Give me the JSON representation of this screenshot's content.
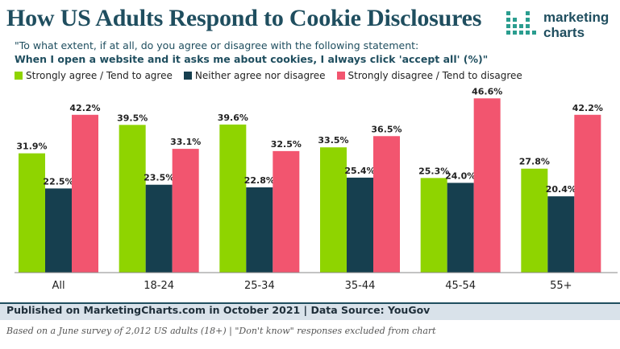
{
  "header": {
    "title": "How US Adults Respond to Cookie Disclosures",
    "subtitle_line1": "\"To what extent, if at all, do you agree or disagree with the following statement:",
    "subtitle_line2": "When I open a website and it asks me about cookies, I always click 'accept all' (%)\""
  },
  "logo": {
    "line1": "marketing",
    "line2": "charts"
  },
  "colors": {
    "agree": "#8fd400",
    "neither": "#163f4f",
    "disagree": "#f2556f",
    "title": "#1f4e5f"
  },
  "chart_data": {
    "type": "bar",
    "title": "How US Adults Respond to Cookie Disclosures",
    "xlabel": "",
    "ylabel": "",
    "ylim": [
      0,
      50
    ],
    "grid": false,
    "legend_position": "top-left",
    "categories": [
      "All",
      "18-24",
      "25-34",
      "35-44",
      "45-54",
      "55+"
    ],
    "series": [
      {
        "name": "Strongly agree / Tend to agree",
        "values": [
          31.9,
          39.5,
          39.6,
          33.5,
          25.3,
          27.8
        ]
      },
      {
        "name": "Neither agree nor disagree",
        "values": [
          22.5,
          23.5,
          22.8,
          25.4,
          24.0,
          20.4
        ]
      },
      {
        "name": "Strongly disagree / Tend to disagree",
        "values": [
          42.2,
          33.1,
          32.5,
          36.5,
          46.6,
          42.2
        ]
      }
    ]
  },
  "footer": {
    "source": "Published on MarketingCharts.com in October 2021 | Data Source: YouGov",
    "note": "Based on a June survey of 2,012 US adults (18+) | \"Don't know\" responses excluded from chart"
  }
}
